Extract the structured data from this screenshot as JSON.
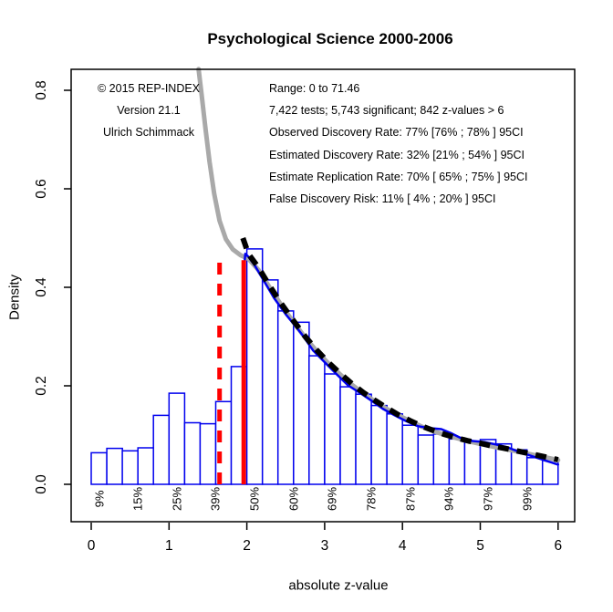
{
  "title": "Psychological Science 2000-2006",
  "annotations": {
    "credits": [
      "© 2015 REP-INDEX",
      "Version 21.1",
      "Ulrich Schimmack"
    ],
    "stats": [
      "Range: 0 to 71.46",
      "7,422 tests; 5,743 significant; 842 z-values > 6",
      "Observed Discovery Rate: 77% [76% ; 78% ] 95CI",
      "Estimated Discovery Rate: 32% [21% ; 54% ] 95CI",
      "Estimate Replication Rate: 70% [ 65% ; 75% ] 95CI",
      "False Discovery Risk: 11% [ 4% ; 20% ] 95CI"
    ]
  },
  "chart_data": {
    "type": "histogram+line",
    "title": "Psychological Science 2000-2006",
    "xlabel": "absolute z-value",
    "ylabel": "Density",
    "xlim": [
      0,
      6
    ],
    "ylim": [
      0,
      0.8
    ],
    "grid": false,
    "x_ticks": [
      "0",
      "1",
      "2",
      "3",
      "4",
      "5",
      "6"
    ],
    "y_ticks": [
      "0.0",
      "0.2",
      "0.4",
      "0.6",
      "0.8"
    ],
    "histogram": {
      "bin_start": 0,
      "bin_width": 0.2,
      "fill": "#FFFFFF",
      "border": "#0000EE",
      "densities": [
        0.064,
        0.073,
        0.068,
        0.074,
        0.14,
        0.185,
        0.125,
        0.123,
        0.168,
        0.239,
        0.478,
        0.415,
        0.352,
        0.329,
        0.261,
        0.224,
        0.198,
        0.183,
        0.16,
        0.143,
        0.12,
        0.1,
        0.102,
        0.092,
        0.086,
        0.091,
        0.082,
        0.07,
        0.054,
        0.052
      ]
    },
    "power_labels": {
      "labels": [
        "9%",
        "15%",
        "25%",
        "39%",
        "50%",
        "60%",
        "69%",
        "78%",
        "87%",
        "94%",
        "97%",
        "99%"
      ],
      "z_positions": [
        0.1,
        0.6,
        1.1,
        1.6,
        2.1,
        2.6,
        3.1,
        3.6,
        4.1,
        4.6,
        5.1,
        5.6
      ]
    },
    "reference_lines": [
      {
        "name": "marginal-significance-line",
        "z": 1.65,
        "style": "dashed",
        "color": "#FF0000",
        "y_top": 0.455
      },
      {
        "name": "significance-line",
        "z": 1.96,
        "style": "solid",
        "color": "#FF0000",
        "y_top": 0.455
      }
    ],
    "curves": [
      {
        "name": "model-density-grey",
        "color": "#A9A9A9",
        "width": 5,
        "dash": null,
        "points": [
          [
            1.38,
            0.843
          ],
          [
            1.42,
            0.79
          ],
          [
            1.47,
            0.72
          ],
          [
            1.52,
            0.655
          ],
          [
            1.58,
            0.59
          ],
          [
            1.65,
            0.535
          ],
          [
            1.73,
            0.498
          ],
          [
            1.82,
            0.477
          ],
          [
            1.92,
            0.465
          ],
          [
            2.02,
            0.458
          ],
          [
            2.15,
            0.435
          ],
          [
            2.3,
            0.398
          ],
          [
            2.45,
            0.362
          ],
          [
            2.6,
            0.329
          ],
          [
            2.75,
            0.298
          ],
          [
            2.9,
            0.27
          ],
          [
            3.05,
            0.245
          ],
          [
            3.2,
            0.223
          ],
          [
            3.35,
            0.202
          ],
          [
            3.5,
            0.184
          ],
          [
            3.65,
            0.168
          ],
          [
            3.8,
            0.153
          ],
          [
            3.95,
            0.14
          ],
          [
            4.1,
            0.128
          ],
          [
            4.25,
            0.117
          ],
          [
            4.4,
            0.108
          ],
          [
            4.55,
            0.1
          ],
          [
            4.7,
            0.0935
          ],
          [
            4.85,
            0.0875
          ],
          [
            5.0,
            0.082
          ],
          [
            5.15,
            0.077
          ],
          [
            5.3,
            0.0725
          ],
          [
            5.45,
            0.0675
          ],
          [
            5.6,
            0.0625
          ],
          [
            5.75,
            0.0575
          ],
          [
            5.9,
            0.0525
          ],
          [
            6.0,
            0.049
          ]
        ]
      },
      {
        "name": "estimated-density-blue",
        "color": "#0000EE",
        "width": 2.5,
        "dash": null,
        "points": [
          [
            1.97,
            0.448
          ],
          [
            1.98,
            0.468
          ],
          [
            2.02,
            0.462
          ],
          [
            2.1,
            0.445
          ],
          [
            2.2,
            0.418
          ],
          [
            2.35,
            0.378
          ],
          [
            2.5,
            0.345
          ],
          [
            2.62,
            0.322
          ],
          [
            2.72,
            0.302
          ],
          [
            2.85,
            0.272
          ],
          [
            3.0,
            0.248
          ],
          [
            3.15,
            0.224
          ],
          [
            3.3,
            0.201
          ],
          [
            3.45,
            0.186
          ],
          [
            3.6,
            0.17
          ],
          [
            3.75,
            0.153
          ],
          [
            3.9,
            0.14
          ],
          [
            4.05,
            0.128
          ],
          [
            4.2,
            0.118
          ],
          [
            4.35,
            0.114
          ],
          [
            4.5,
            0.112
          ],
          [
            4.62,
            0.104
          ],
          [
            4.75,
            0.094
          ],
          [
            4.9,
            0.088
          ],
          [
            5.05,
            0.086
          ],
          [
            5.2,
            0.081
          ],
          [
            5.35,
            0.075
          ],
          [
            5.5,
            0.066
          ],
          [
            5.65,
            0.058
          ],
          [
            5.8,
            0.05
          ],
          [
            5.92,
            0.044
          ],
          [
            6.0,
            0.04
          ]
        ]
      },
      {
        "name": "predicted-density-black-dashed",
        "color": "#000000",
        "width": 6,
        "dash": [
          12,
          9
        ],
        "points": [
          [
            1.95,
            0.5
          ],
          [
            2.02,
            0.468
          ],
          [
            2.15,
            0.44
          ],
          [
            2.3,
            0.401
          ],
          [
            2.45,
            0.365
          ],
          [
            2.6,
            0.332
          ],
          [
            2.75,
            0.3
          ],
          [
            2.9,
            0.272
          ],
          [
            3.05,
            0.247
          ],
          [
            3.2,
            0.225
          ],
          [
            3.35,
            0.204
          ],
          [
            3.5,
            0.186
          ],
          [
            3.65,
            0.17
          ],
          [
            3.8,
            0.155
          ],
          [
            3.95,
            0.141
          ],
          [
            4.1,
            0.129
          ],
          [
            4.25,
            0.118
          ],
          [
            4.4,
            0.109
          ],
          [
            4.55,
            0.101
          ],
          [
            4.7,
            0.094
          ],
          [
            4.85,
            0.088
          ],
          [
            5.0,
            0.0835
          ],
          [
            5.15,
            0.078
          ],
          [
            5.3,
            0.0735
          ],
          [
            5.45,
            0.0685
          ],
          [
            5.6,
            0.0635
          ],
          [
            5.75,
            0.0585
          ],
          [
            5.9,
            0.0535
          ],
          [
            6.0,
            0.05
          ]
        ]
      }
    ]
  },
  "colors": {
    "background": "#FFFFFF",
    "histogram_border": "#0000EE",
    "reference_red": "#FF0000",
    "model_grey": "#A9A9A9",
    "dashed_black": "#000000",
    "axis_black": "#000000"
  }
}
